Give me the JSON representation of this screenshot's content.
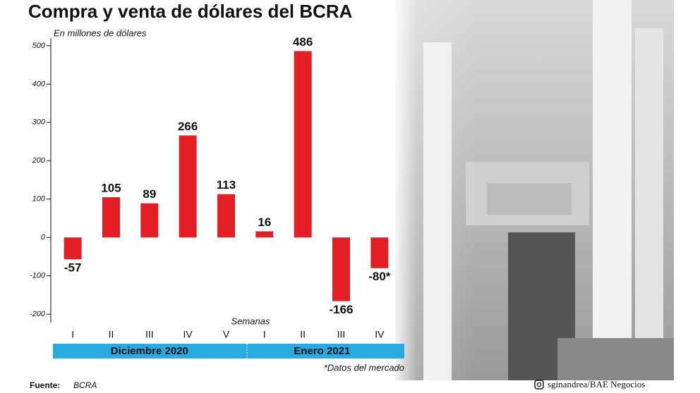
{
  "chart_data": {
    "type": "bar",
    "title": "Compra y venta de dólares del BCRA",
    "y_label": "En millones de dólares",
    "x_label": "Semanas",
    "categories": [
      "I",
      "II",
      "III",
      "IV",
      "V",
      "I",
      "II",
      "III",
      "IV"
    ],
    "values": [
      -57,
      105,
      89,
      266,
      113,
      16,
      486,
      -166,
      -80
    ],
    "value_labels": [
      "-57",
      "105",
      "89",
      "266",
      "113",
      "16",
      "486",
      "-166",
      "-80*"
    ],
    "groups": [
      "Diciembre 2020",
      "Enero 2021"
    ],
    "color": "#e31e24",
    "ylim": [
      -220,
      520
    ],
    "yticks": [
      -200,
      -100,
      0,
      100,
      200,
      300,
      400,
      500
    ],
    "grid": false,
    "note": "*Datos del mercado",
    "source_label": "Fuente:",
    "source": "BCRA",
    "credit": "sginandrea/BAE Negocios"
  }
}
